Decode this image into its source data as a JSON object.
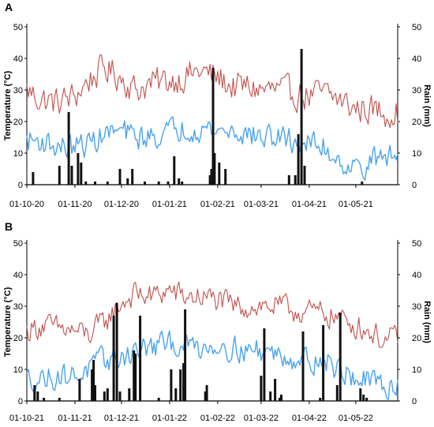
{
  "chart_data": [
    {
      "panel": "A",
      "type": "line",
      "ylabel": "Temperature (°C)",
      "ylabel_right": "Rain (mm)",
      "ylim": [
        0,
        50
      ],
      "ylim_right": [
        0,
        50
      ],
      "yticks": [
        "0",
        "10",
        "20",
        "30",
        "40",
        "50"
      ],
      "yticks_right": [
        "0",
        "10",
        "20",
        "30",
        "40",
        "50"
      ],
      "date_start": "2020-10-01",
      "date_end": "2021-05-28",
      "xticks": [
        {
          "date": "2020-10-01",
          "label": "01-10-20"
        },
        {
          "date": "2020-11-01",
          "label": "01-11-20"
        },
        {
          "date": "2020-12-01",
          "label": "01-12-20"
        },
        {
          "date": "2021-01-01",
          "label": "01-01-21"
        },
        {
          "date": "2021-02-01",
          "label": "01-02-21"
        },
        {
          "date": "2021-03-01",
          "label": "01-03-21"
        },
        {
          "date": "2021-04-01",
          "label": "01-04-21"
        },
        {
          "date": "2021-05-01",
          "label": "01-05-21"
        }
      ],
      "grid": false,
      "legend": "none",
      "series": [
        {
          "color": "#c0504d",
          "line": "red",
          "mean": 29,
          "amp": 6,
          "trend": [
            [
              "2020-10-01",
              30
            ],
            [
              "2020-10-10",
              27
            ],
            [
              "2020-10-20",
              26
            ],
            [
              "2020-11-01",
              28
            ],
            [
              "2020-11-10",
              33
            ],
            [
              "2020-11-20",
              37
            ],
            [
              "2020-12-01",
              34
            ],
            [
              "2020-12-10",
              30
            ],
            [
              "2020-12-20",
              32
            ],
            [
              "2021-01-01",
              33
            ],
            [
              "2021-01-10",
              34
            ],
            [
              "2021-01-20",
              36
            ],
            [
              "2021-02-01",
              34
            ],
            [
              "2021-02-10",
              31
            ],
            [
              "2021-02-20",
              31
            ],
            [
              "2021-03-01",
              30
            ],
            [
              "2021-03-10",
              30
            ],
            [
              "2021-03-20",
              29
            ],
            [
              "2021-04-01",
              28
            ],
            [
              "2021-04-10",
              29
            ],
            [
              "2021-04-20",
              27
            ],
            [
              "2021-05-01",
              24
            ],
            [
              "2021-05-10",
              24
            ],
            [
              "2021-05-20",
              23
            ],
            [
              "2021-05-28",
              23
            ]
          ]
        },
        {
          "color": "#4aa3f0",
          "line": "blue",
          "mean": 14,
          "amp": 5,
          "trend": [
            [
              "2020-10-01",
              14
            ],
            [
              "2020-10-10",
              14
            ],
            [
              "2020-10-20",
              12
            ],
            [
              "2020-11-01",
              12
            ],
            [
              "2020-11-10",
              13
            ],
            [
              "2020-11-20",
              16
            ],
            [
              "2020-12-01",
              17
            ],
            [
              "2020-12-10",
              15
            ],
            [
              "2020-12-20",
              15
            ],
            [
              "2021-01-01",
              17
            ],
            [
              "2021-01-10",
              18
            ],
            [
              "2021-01-20",
              18
            ],
            [
              "2021-02-01",
              17
            ],
            [
              "2021-02-10",
              17
            ],
            [
              "2021-02-20",
              16
            ],
            [
              "2021-03-01",
              15
            ],
            [
              "2021-03-10",
              15
            ],
            [
              "2021-03-20",
              14
            ],
            [
              "2021-04-01",
              13
            ],
            [
              "2021-04-10",
              12
            ],
            [
              "2021-04-20",
              8
            ],
            [
              "2021-05-01",
              5
            ],
            [
              "2021-05-10",
              7
            ],
            [
              "2021-05-20",
              9
            ],
            [
              "2021-05-28",
              9
            ]
          ]
        }
      ],
      "rain": [
        [
          "2020-10-05",
          4
        ],
        [
          "2020-10-22",
          6
        ],
        [
          "2020-10-28",
          23
        ],
        [
          "2020-10-30",
          6
        ],
        [
          "2020-11-03",
          10
        ],
        [
          "2020-11-05",
          7
        ],
        [
          "2020-11-08",
          1
        ],
        [
          "2020-11-14",
          1
        ],
        [
          "2020-11-22",
          1
        ],
        [
          "2020-11-30",
          5
        ],
        [
          "2020-12-05",
          2
        ],
        [
          "2020-12-08",
          5
        ],
        [
          "2020-12-16",
          1
        ],
        [
          "2020-12-25",
          1
        ],
        [
          "2020-12-31",
          1
        ],
        [
          "2021-01-04",
          9
        ],
        [
          "2021-01-07",
          2
        ],
        [
          "2021-01-09",
          1
        ],
        [
          "2021-01-27",
          3
        ],
        [
          "2021-01-28",
          5
        ],
        [
          "2021-01-29",
          37
        ],
        [
          "2021-01-30",
          10
        ],
        [
          "2021-02-02",
          7
        ],
        [
          "2021-02-06",
          5
        ],
        [
          "2021-03-19",
          3
        ],
        [
          "2021-03-23",
          3
        ],
        [
          "2021-03-25",
          16
        ],
        [
          "2021-03-27",
          43
        ],
        [
          "2021-03-29",
          6
        ],
        [
          "2021-05-05",
          1
        ]
      ]
    },
    {
      "panel": "B",
      "type": "line",
      "ylabel": "Temperature (°C)",
      "ylabel_right": "Rain (mm)",
      "ylim": [
        0,
        50
      ],
      "ylim_right": [
        0,
        50
      ],
      "yticks": [
        "0",
        "10",
        "20",
        "30",
        "40",
        "50"
      ],
      "yticks_right": [
        "0",
        "10",
        "20",
        "30",
        "40",
        "50"
      ],
      "date_start": "2021-10-01",
      "date_end": "2022-05-28",
      "xticks": [
        {
          "date": "2021-10-01",
          "label": "01-10-21"
        },
        {
          "date": "2021-11-01",
          "label": "01-11-21"
        },
        {
          "date": "2021-12-01",
          "label": "01-12-21"
        },
        {
          "date": "2022-01-01",
          "label": "01-01-22"
        },
        {
          "date": "2022-02-01",
          "label": "01-02-22"
        },
        {
          "date": "2022-03-01",
          "label": "01-03-22"
        },
        {
          "date": "2022-04-01",
          "label": "01-04-22"
        },
        {
          "date": "2022-05-01",
          "label": "01-05-22"
        }
      ],
      "grid": false,
      "legend": "none",
      "series": [
        {
          "color": "#c0504d",
          "line": "red",
          "mean": 29,
          "amp": 5,
          "trend": [
            [
              "2021-10-01",
              22
            ],
            [
              "2021-10-10",
              24
            ],
            [
              "2021-10-20",
              23
            ],
            [
              "2021-11-01",
              22
            ],
            [
              "2021-11-10",
              21
            ],
            [
              "2021-11-20",
              25
            ],
            [
              "2021-12-01",
              31
            ],
            [
              "2021-12-10",
              34
            ],
            [
              "2021-12-20",
              33
            ],
            [
              "2022-01-01",
              35
            ],
            [
              "2022-01-10",
              33
            ],
            [
              "2022-01-20",
              33
            ],
            [
              "2022-02-01",
              32
            ],
            [
              "2022-02-10",
              30
            ],
            [
              "2022-02-20",
              30
            ],
            [
              "2022-03-01",
              30
            ],
            [
              "2022-03-10",
              30
            ],
            [
              "2022-03-20",
              29
            ],
            [
              "2022-04-01",
              28
            ],
            [
              "2022-04-10",
              28
            ],
            [
              "2022-04-20",
              26
            ],
            [
              "2022-05-01",
              24
            ],
            [
              "2022-05-10",
              22
            ],
            [
              "2022-05-20",
              19
            ],
            [
              "2022-05-28",
              20
            ]
          ]
        },
        {
          "color": "#4aa3f0",
          "line": "blue",
          "mean": 14,
          "amp": 5,
          "trend": [
            [
              "2021-10-01",
              7
            ],
            [
              "2021-10-10",
              7
            ],
            [
              "2021-10-20",
              8
            ],
            [
              "2021-11-01",
              8
            ],
            [
              "2021-11-10",
              10
            ],
            [
              "2021-11-20",
              13
            ],
            [
              "2021-12-01",
              14
            ],
            [
              "2021-12-10",
              16
            ],
            [
              "2021-12-20",
              17
            ],
            [
              "2022-01-01",
              18
            ],
            [
              "2022-01-10",
              18
            ],
            [
              "2022-01-20",
              17
            ],
            [
              "2022-02-01",
              18
            ],
            [
              "2022-02-10",
              17
            ],
            [
              "2022-02-20",
              16
            ],
            [
              "2022-03-01",
              16
            ],
            [
              "2022-03-10",
              15
            ],
            [
              "2022-03-20",
              14
            ],
            [
              "2022-04-01",
              13
            ],
            [
              "2022-04-10",
              13
            ],
            [
              "2022-04-20",
              10
            ],
            [
              "2022-05-01",
              7
            ],
            [
              "2022-05-10",
              6
            ],
            [
              "2022-05-20",
              4
            ],
            [
              "2022-05-28",
              6
            ]
          ]
        }
      ],
      "rain": [
        [
          "2021-10-06",
          5
        ],
        [
          "2021-10-08",
          3
        ],
        [
          "2021-10-12",
          1
        ],
        [
          "2021-10-22",
          1
        ],
        [
          "2021-11-04",
          7
        ],
        [
          "2021-11-12",
          10
        ],
        [
          "2021-11-13",
          13
        ],
        [
          "2021-11-14",
          5
        ],
        [
          "2021-11-20",
          3
        ],
        [
          "2021-11-22",
          4
        ],
        [
          "2021-11-26",
          27
        ],
        [
          "2021-11-28",
          31
        ],
        [
          "2021-11-30",
          3
        ],
        [
          "2021-12-06",
          4
        ],
        [
          "2021-12-09",
          16
        ],
        [
          "2021-12-10",
          15
        ],
        [
          "2021-12-13",
          27
        ],
        [
          "2021-12-25",
          1
        ],
        [
          "2022-01-02",
          10
        ],
        [
          "2022-01-05",
          4
        ],
        [
          "2022-01-08",
          10
        ],
        [
          "2022-01-10",
          12
        ],
        [
          "2022-01-11",
          29
        ],
        [
          "2022-01-24",
          3
        ],
        [
          "2022-01-25",
          5
        ],
        [
          "2022-03-01",
          8
        ],
        [
          "2022-03-03",
          23
        ],
        [
          "2022-03-07",
          3
        ],
        [
          "2022-03-10",
          7
        ],
        [
          "2022-03-13",
          1
        ],
        [
          "2022-03-14",
          2
        ],
        [
          "2022-03-28",
          22
        ],
        [
          "2022-04-08",
          1
        ],
        [
          "2022-04-10",
          24
        ],
        [
          "2022-04-19",
          5
        ],
        [
          "2022-04-21",
          28
        ],
        [
          "2022-05-04",
          4
        ],
        [
          "2022-05-06",
          2
        ],
        [
          "2022-05-08",
          1
        ]
      ]
    }
  ]
}
